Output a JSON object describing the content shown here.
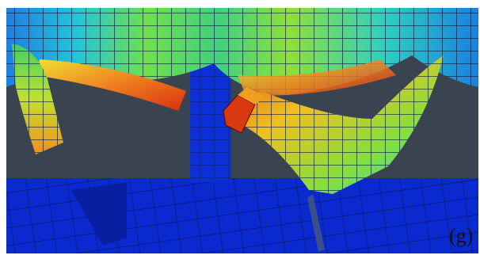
{
  "label": "(g)"
}
